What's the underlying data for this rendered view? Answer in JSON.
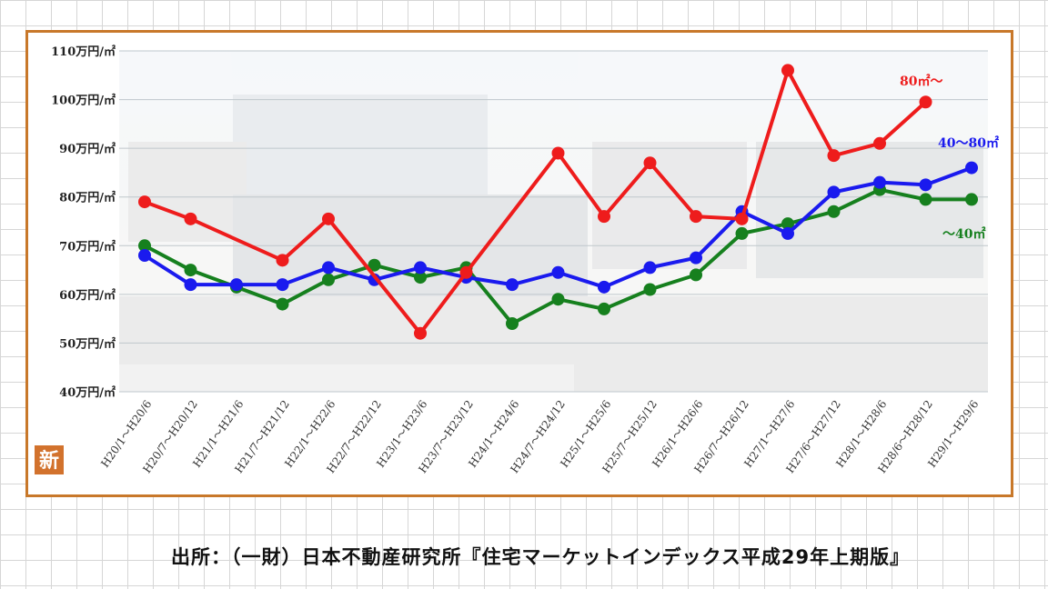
{
  "chart_data": {
    "type": "line",
    "y_ticks": [
      "40万円/㎡",
      "50万円/㎡",
      "60万円/㎡",
      "70万円/㎡",
      "80万円/㎡",
      "90万円/㎡",
      "100万円/㎡",
      "110万円/㎡"
    ],
    "ylim": [
      40,
      110
    ],
    "grid": true,
    "categories": [
      "H20/1～H20/6",
      "H20/7～H20/12",
      "H21/1～H21/6",
      "H21/7～H21/12",
      "H22/1～H22/6",
      "H22/7～H22/12",
      "H23/1～H23/6",
      "H23/7～H23/12",
      "H24/1～H24/6",
      "H24/7～H24/12",
      "H25/1～H25/6",
      "H25/7～H25/12",
      "H26/1～H26/6",
      "H26/7～H26/12",
      "H27/1～H27/6",
      "H27/6～H27/12",
      "H28/1～H28/6",
      "H28/6～H28/12",
      "H29/1～H29/6"
    ],
    "series": [
      {
        "name": "80㎡～",
        "color": "#ee1c1c",
        "values": [
          79,
          75.5,
          null,
          67,
          75.5,
          null,
          52,
          64.5,
          null,
          89,
          76,
          87,
          76,
          75.5,
          106,
          88.5,
          91,
          99.5,
          null
        ]
      },
      {
        "name": "40～80㎡",
        "color": "#1a1aee",
        "values": [
          68,
          62,
          62,
          62,
          65.5,
          63,
          65.5,
          63.5,
          62,
          64.5,
          61.5,
          65.5,
          67.5,
          77,
          72.5,
          81,
          83,
          82.5,
          86
        ]
      },
      {
        "name": "～40㎡",
        "color": "#16801e",
        "values": [
          70,
          65,
          61.5,
          58,
          63,
          66,
          63.5,
          65.5,
          54,
          59,
          57,
          61,
          64,
          72.5,
          74.5,
          77,
          81.5,
          79.5,
          79.5
        ]
      }
    ]
  },
  "badge": "新",
  "source": "出所：（一財）日本不動産研究所『住宅マーケットインデックス平成29年上期版』"
}
